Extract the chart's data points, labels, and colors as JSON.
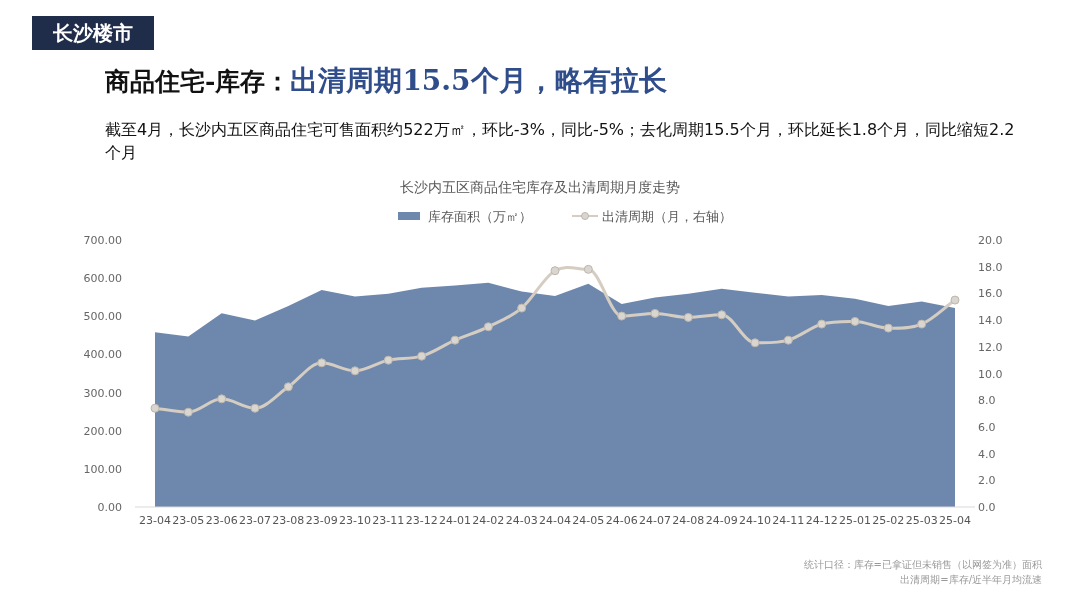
{
  "chart_data": {
    "type": "area",
    "title": "商品住宅-库存：出清周期15.5个月，略有拉长",
    "subtitle": "截至4月，长沙内五区商品住宅可售面积约522万㎡，环比-3%，同比-5%；去化周期15.5个月，环比延长1.8个月，同比缩短2.2个月",
    "annotations": [
      "长沙楼市",
      "长沙内五区商品住宅库存及出清周期月度走势",
      "统计口径：库存=已拿证但未销售（以网签为准）面积",
      "出清周期=库存/近半年月均流速"
    ],
    "categories": [
      "23-04",
      "23-05",
      "23-06",
      "23-07",
      "23-08",
      "23-09",
      "23-10",
      "23-11",
      "23-12",
      "24-01",
      "24-02",
      "24-03",
      "24-04",
      "24-05",
      "24-06",
      "24-07",
      "24-08",
      "24-09",
      "24-10",
      "24-11",
      "24-12",
      "25-01",
      "25-02",
      "25-03",
      "25-04"
    ],
    "series": [
      {
        "name": "库存面积（万㎡）",
        "color": "#6e88ad",
        "values": [
          458,
          447,
          508,
          489,
          527,
          569,
          552,
          559,
          575,
          581,
          588,
          565,
          553,
          585,
          532,
          549,
          559,
          572,
          562,
          552,
          556,
          546,
          527,
          539,
          522
        ]
      },
      {
        "name": "出清周期（月，右轴）",
        "type": "line",
        "axis": "y2",
        "marker": "circle",
        "color": "#d6cdc2",
        "values": [
          7.4,
          7.1,
          8.1,
          7.4,
          9.0,
          10.8,
          10.2,
          11.0,
          11.3,
          12.5,
          13.5,
          14.9,
          17.7,
          17.8,
          14.3,
          14.5,
          14.2,
          14.4,
          12.3,
          12.5,
          13.7,
          13.9,
          13.4,
          13.7,
          15.5
        ]
      }
    ],
    "ylim": [
      0,
      700
    ],
    "yticks": [
      {
        "value": 0,
        "label": "0.00"
      },
      {
        "value": 100,
        "label": "100.00"
      },
      {
        "value": 200,
        "label": "200.00"
      },
      {
        "value": 300,
        "label": "300.00"
      },
      {
        "value": 400,
        "label": "400.00"
      },
      {
        "value": 500,
        "label": "500.00"
      },
      {
        "value": 600,
        "label": "600.00"
      },
      {
        "value": 700,
        "label": "700.00"
      }
    ],
    "y2lim": [
      0,
      20
    ],
    "y2ticks": [
      {
        "value": 0,
        "label": "0.0"
      },
      {
        "value": 2,
        "label": "2.0"
      },
      {
        "value": 4,
        "label": "4.0"
      },
      {
        "value": 6,
        "label": "6.0"
      },
      {
        "value": 8,
        "label": "8.0"
      },
      {
        "value": 10,
        "label": "10.0"
      },
      {
        "value": 12,
        "label": "12.0"
      },
      {
        "value": 14,
        "label": "14.0"
      },
      {
        "value": 16,
        "label": "16.0"
      },
      {
        "value": 18,
        "label": "18.0"
      },
      {
        "value": 20,
        "label": "20.0"
      }
    ],
    "legend": "top",
    "line_style": "solid"
  }
}
